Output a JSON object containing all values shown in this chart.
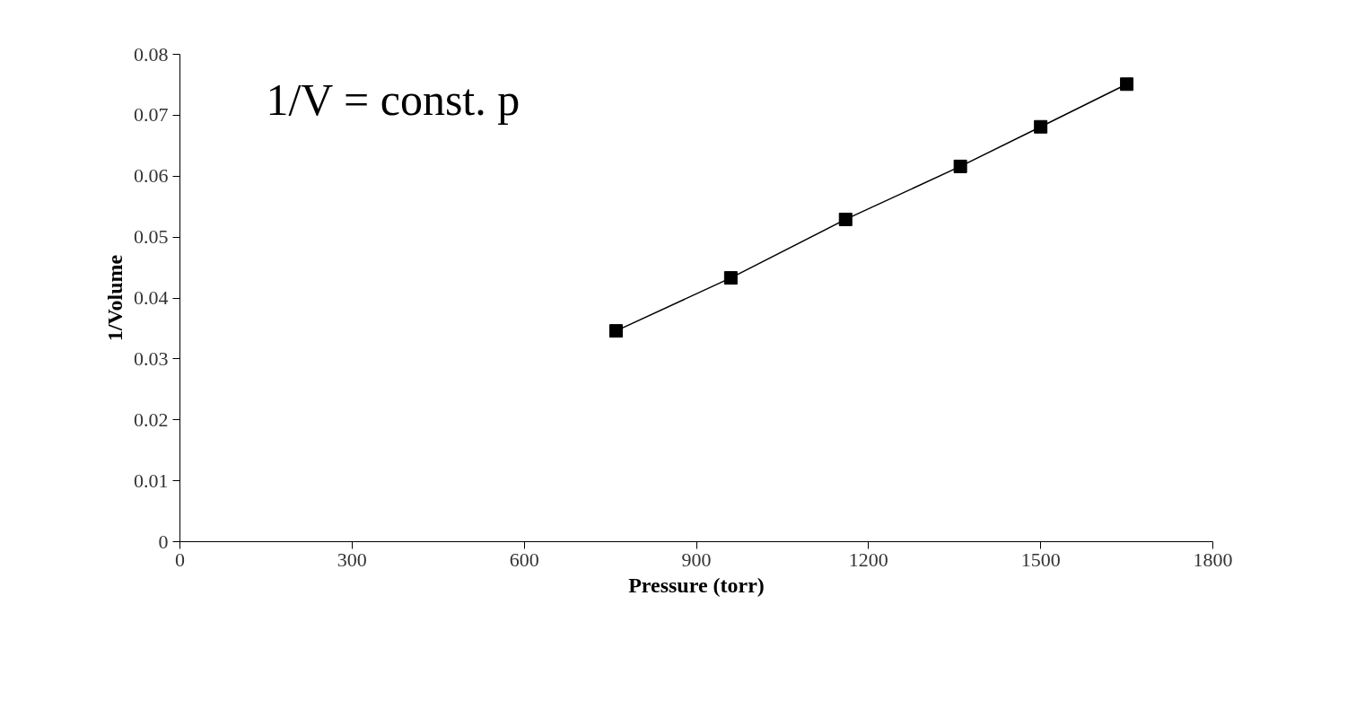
{
  "chart_data": {
    "type": "line",
    "xlabel": "Pressure (torr)",
    "ylabel": "1/Volume",
    "annotations": [
      "1/V = const. p"
    ],
    "x": [
      760,
      960,
      1160,
      1360,
      1500,
      1650
    ],
    "series": [
      {
        "color": "#000000",
        "values": [
          0.0346,
          0.0433,
          0.0529,
          0.0616,
          0.0681,
          0.0751
        ]
      }
    ],
    "xlim": [
      0,
      1800
    ],
    "xticks": [
      0,
      300,
      600,
      900,
      1200,
      1500,
      1800
    ],
    "ylim": [
      0,
      0.08
    ],
    "yticks": [
      0,
      0.01,
      0.02,
      0.03,
      0.04,
      0.05,
      0.06,
      0.07,
      0.08
    ],
    "grid": false,
    "marker": "square",
    "line_style": "solid"
  }
}
